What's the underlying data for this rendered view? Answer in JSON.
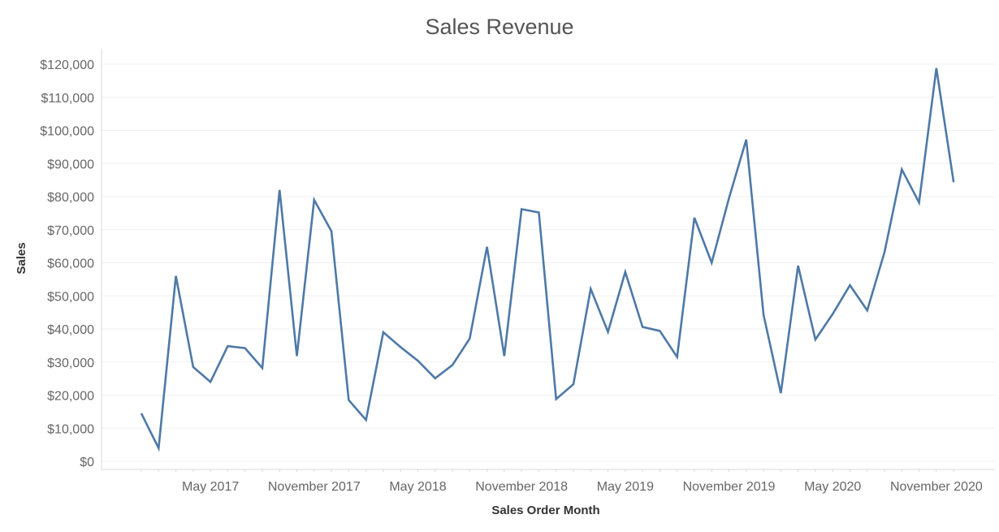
{
  "chart_data": {
    "type": "line",
    "title": "Sales Revenue",
    "xlabel": "Sales Order Month",
    "ylabel": "Sales",
    "ylim": [
      0,
      120000
    ],
    "y_ticks": [
      0,
      10000,
      20000,
      30000,
      40000,
      50000,
      60000,
      70000,
      80000,
      90000,
      100000,
      110000,
      120000
    ],
    "y_tick_labels": [
      "$0",
      "$10,000",
      "$20,000",
      "$30,000",
      "$40,000",
      "$50,000",
      "$60,000",
      "$70,000",
      "$80,000",
      "$90,000",
      "$100,000",
      "$110,000",
      "$120,000"
    ],
    "x_tick_labels": [
      {
        "month": "2017-05",
        "label": "May 2017"
      },
      {
        "month": "2017-11",
        "label": "November 2017"
      },
      {
        "month": "2018-05",
        "label": "May 2018"
      },
      {
        "month": "2018-11",
        "label": "November 2018"
      },
      {
        "month": "2019-05",
        "label": "May 2019"
      },
      {
        "month": "2019-11",
        "label": "November 2019"
      },
      {
        "month": "2020-05",
        "label": "May 2020"
      },
      {
        "month": "2020-11",
        "label": "November 2020"
      }
    ],
    "grid": true,
    "color": "#4e79a7",
    "x": [
      "2017-01",
      "2017-02",
      "2017-03",
      "2017-04",
      "2017-05",
      "2017-06",
      "2017-07",
      "2017-08",
      "2017-09",
      "2017-10",
      "2017-11",
      "2017-12",
      "2018-01",
      "2018-02",
      "2018-03",
      "2018-04",
      "2018-05",
      "2018-06",
      "2018-07",
      "2018-08",
      "2018-09",
      "2018-10",
      "2018-11",
      "2018-12",
      "2019-01",
      "2019-02",
      "2019-03",
      "2019-04",
      "2019-05",
      "2019-06",
      "2019-07",
      "2019-08",
      "2019-09",
      "2019-10",
      "2019-11",
      "2019-12",
      "2020-01",
      "2020-02",
      "2020-03",
      "2020-04",
      "2020-05",
      "2020-06",
      "2020-07",
      "2020-08",
      "2020-09",
      "2020-10",
      "2020-11",
      "2020-12"
    ],
    "series": [
      {
        "values": [
          14500,
          4000,
          56000,
          28500,
          24000,
          34800,
          34200,
          28200,
          82000,
          31800,
          79000,
          69500,
          18500,
          12500,
          39000,
          34500,
          30400,
          25100,
          29100,
          37100,
          64800,
          31800,
          76200,
          75200,
          18800,
          23300,
          52100,
          39100,
          57200,
          40600,
          39400,
          31500,
          73600,
          60000,
          79500,
          97200,
          44300,
          20600,
          59100,
          36800,
          44500,
          53200,
          45600,
          63200,
          88200,
          78200,
          118800,
          84300
        ]
      }
    ]
  }
}
